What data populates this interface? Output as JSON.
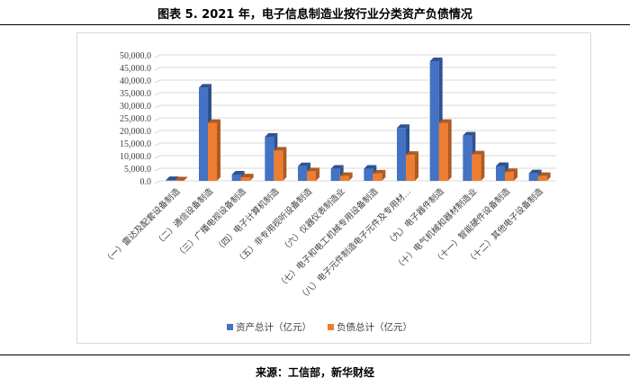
{
  "title": "图表 5. 2021 年，电子信息制造业按行业分类资产负债情况",
  "source": "来源：工信部，新华财经",
  "chart_data": {
    "type": "bar",
    "title": "",
    "categories": [
      "（一）雷达及配套设备制造",
      "（二）通信设备制造",
      "（三）广播电视设备制造",
      "（四）电子计算机制造",
      "（五）非专用视听设备制造",
      "（六）仪器仪表制造业",
      "（七）电子和电工机械专用设备制造",
      "（八）电子元件制造电子元件及专用材…",
      "（九）电子器件制造",
      "（十）电气机械和器材制造业",
      "（十一）智能硬件设备制造",
      "（十二）其他电子设备制造"
    ],
    "series": [
      {
        "name": "资产总计（亿元）",
        "color": "#4472c4",
        "values": [
          300,
          37000,
          2500,
          17500,
          5800,
          4800,
          4800,
          21000,
          47500,
          18000,
          5900,
          3000
        ]
      },
      {
        "name": "负债总计（亿元）",
        "color": "#ed7d31",
        "values": [
          200,
          23000,
          1400,
          12000,
          3800,
          1900,
          2900,
          10300,
          23000,
          10500,
          3500,
          1900
        ]
      }
    ],
    "yticks": [
      "0.0",
      "5,000.0",
      "10,000.0",
      "15,000.0",
      "20,000.0",
      "25,000.0",
      "30,000.0",
      "35,000.0",
      "40,000.0",
      "45,000.0",
      "50,000.0"
    ],
    "ylim": [
      0,
      50000
    ],
    "grid": true,
    "legend": "bottom"
  }
}
